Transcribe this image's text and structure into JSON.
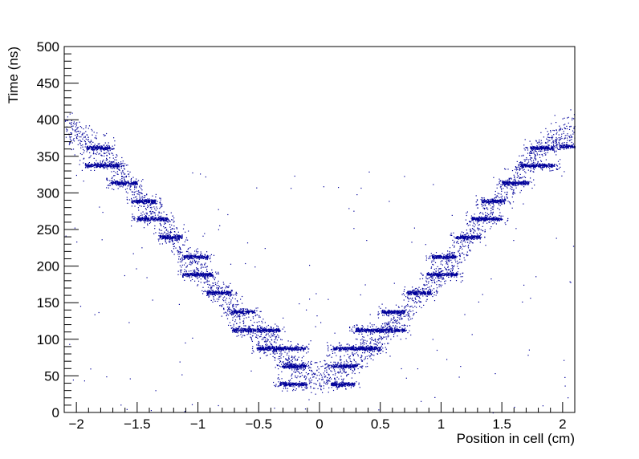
{
  "chart_data": {
    "type": "scatter",
    "title": "",
    "xlabel": "Position in cell (cm)",
    "ylabel": "Time (ns)",
    "xlim": [
      -2.1,
      2.1
    ],
    "ylim": [
      0,
      500
    ],
    "x_ticks": [
      -2,
      -1.5,
      -1,
      -0.5,
      0,
      0.5,
      1,
      1.5,
      2
    ],
    "x_tick_labels": [
      "−2",
      "−1.5",
      "−1",
      "−0.5",
      "0",
      "0.5",
      "1",
      "1.5",
      "2"
    ],
    "y_ticks": [
      0,
      50,
      100,
      150,
      200,
      250,
      300,
      350,
      400,
      450,
      500
    ],
    "y_tick_labels": [
      "0",
      "50",
      "100",
      "150",
      "200",
      "250",
      "300",
      "350",
      "400",
      "450",
      "500"
    ],
    "grid": false,
    "legend": "none",
    "marker_color": "#000099",
    "series": [
      {
        "bands": [
          {
            "x": [
              -1.92,
              -1.73
            ],
            "y": 362
          },
          {
            "x": [
              -1.93,
              -1.65
            ],
            "y": 338
          },
          {
            "x": [
              -1.72,
              -1.5
            ],
            "y": 314
          },
          {
            "x": [
              -1.55,
              -1.35
            ],
            "y": 289
          },
          {
            "x": [
              -1.5,
              -1.25
            ],
            "y": 265
          },
          {
            "x": [
              -1.32,
              -1.13
            ],
            "y": 240
          },
          {
            "x": [
              -1.12,
              -0.92
            ],
            "y": 213
          },
          {
            "x": [
              -1.13,
              -0.88
            ],
            "y": 189
          },
          {
            "x": [
              -0.93,
              -0.73
            ],
            "y": 164
          },
          {
            "x": [
              -0.73,
              -0.53
            ],
            "y": 138
          },
          {
            "x": [
              -0.72,
              -0.33
            ],
            "y": 113
          },
          {
            "x": [
              -0.52,
              -0.12
            ],
            "y": 88
          },
          {
            "x": [
              -0.31,
              -0.11
            ],
            "y": 64
          },
          {
            "x": [
              -0.33,
              -0.11
            ],
            "y": 39
          },
          {
            "x": [
              0.09,
              0.29
            ],
            "y": 39
          },
          {
            "x": [
              0.09,
              0.31
            ],
            "y": 64
          },
          {
            "x": [
              0.11,
              0.5
            ],
            "y": 88
          },
          {
            "x": [
              0.29,
              0.7
            ],
            "y": 113
          },
          {
            "x": [
              0.51,
              0.7
            ],
            "y": 138
          },
          {
            "x": [
              0.72,
              0.92
            ],
            "y": 164
          },
          {
            "x": [
              0.88,
              1.13
            ],
            "y": 189
          },
          {
            "x": [
              0.92,
              1.12
            ],
            "y": 213
          },
          {
            "x": [
              1.12,
              1.32
            ],
            "y": 240
          },
          {
            "x": [
              1.25,
              1.5
            ],
            "y": 265
          },
          {
            "x": [
              1.33,
              1.52
            ],
            "y": 289
          },
          {
            "x": [
              1.5,
              1.72
            ],
            "y": 314
          },
          {
            "x": [
              1.65,
              1.93
            ],
            "y": 338
          },
          {
            "x": [
              1.73,
              1.92
            ],
            "y": 362
          },
          {
            "x": [
              1.97,
              2.1
            ],
            "y": 364
          }
        ],
        "profile": [
          [
            -2.1,
            392
          ],
          [
            -1.9,
            372
          ],
          [
            -1.7,
            345
          ],
          [
            -1.5,
            300
          ],
          [
            -1.3,
            258
          ],
          [
            -1.1,
            214
          ],
          [
            -0.9,
            178
          ],
          [
            -0.7,
            140
          ],
          [
            -0.5,
            108
          ],
          [
            -0.3,
            78
          ],
          [
            -0.1,
            50
          ],
          [
            0.1,
            48
          ],
          [
            0.3,
            76
          ],
          [
            0.5,
            106
          ],
          [
            0.7,
            138
          ],
          [
            0.9,
            176
          ],
          [
            1.1,
            212
          ],
          [
            1.3,
            256
          ],
          [
            1.5,
            298
          ],
          [
            1.7,
            342
          ],
          [
            1.9,
            370
          ],
          [
            2.1,
            392
          ]
        ]
      }
    ]
  }
}
